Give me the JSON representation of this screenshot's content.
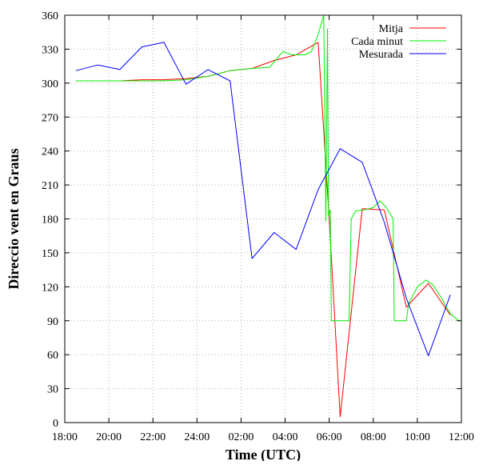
{
  "chart_data": {
    "type": "line",
    "title": "",
    "xlabel": "Time (UTC)",
    "ylabel": "Direccio vent en Graus",
    "x_unit": "hours",
    "xlim": [
      18,
      36
    ],
    "ylim": [
      0,
      360
    ],
    "grid": true,
    "legend_position": "top-right",
    "x_ticks": [
      {
        "v": 18,
        "label": "18:00"
      },
      {
        "v": 20,
        "label": "20:00"
      },
      {
        "v": 22,
        "label": "22:00"
      },
      {
        "v": 24,
        "label": "24:00"
      },
      {
        "v": 26,
        "label": "02:00"
      },
      {
        "v": 28,
        "label": "04:00"
      },
      {
        "v": 30,
        "label": "06:00"
      },
      {
        "v": 32,
        "label": "08:00"
      },
      {
        "v": 34,
        "label": "10:00"
      },
      {
        "v": 36,
        "label": "12:00"
      }
    ],
    "y_ticks": [
      {
        "v": 0,
        "label": "0"
      },
      {
        "v": 30,
        "label": "30"
      },
      {
        "v": 60,
        "label": "60"
      },
      {
        "v": 90,
        "label": "90"
      },
      {
        "v": 120,
        "label": "120"
      },
      {
        "v": 150,
        "label": "150"
      },
      {
        "v": 180,
        "label": "180"
      },
      {
        "v": 210,
        "label": "210"
      },
      {
        "v": 240,
        "label": "240"
      },
      {
        "v": 270,
        "label": "270"
      },
      {
        "v": 300,
        "label": "300"
      },
      {
        "v": 330,
        "label": "330"
      },
      {
        "v": 360,
        "label": "360"
      }
    ],
    "series": [
      {
        "name": "Mitja",
        "color": "#ff0000",
        "points": [
          [
            18.5,
            302
          ],
          [
            19.5,
            302
          ],
          [
            20.5,
            302
          ],
          [
            21.5,
            303
          ],
          [
            22.5,
            303
          ],
          [
            23.5,
            304
          ],
          [
            24.5,
            306
          ],
          [
            25.5,
            311
          ],
          [
            26.5,
            313
          ],
          [
            27.5,
            320
          ],
          [
            28.5,
            325
          ],
          [
            29.5,
            336
          ],
          [
            30.0,
            180
          ],
          [
            30.5,
            5
          ],
          [
            31.5,
            189
          ],
          [
            32.5,
            188
          ],
          [
            33.5,
            102
          ],
          [
            34.5,
            123
          ],
          [
            35.5,
            95
          ]
        ]
      },
      {
        "name": "Cada minut",
        "color": "#00ee00",
        "points": [
          [
            18.5,
            302
          ],
          [
            19.5,
            302
          ],
          [
            20.5,
            302
          ],
          [
            21.5,
            302
          ],
          [
            22.5,
            302
          ],
          [
            23.5,
            303
          ],
          [
            24.5,
            306
          ],
          [
            25.5,
            311
          ],
          [
            26.5,
            313
          ],
          [
            27.3,
            314
          ],
          [
            27.9,
            328
          ],
          [
            28.3,
            325
          ],
          [
            28.9,
            325
          ],
          [
            29.2,
            328
          ],
          [
            29.5,
            343
          ],
          [
            29.75,
            360
          ],
          [
            29.85,
            178
          ],
          [
            29.92,
            348
          ],
          [
            29.97,
            183
          ],
          [
            30.05,
            188
          ],
          [
            30.1,
            90
          ],
          [
            30.3,
            90
          ],
          [
            30.6,
            90
          ],
          [
            30.9,
            90
          ],
          [
            31.0,
            180
          ],
          [
            31.2,
            187
          ],
          [
            31.6,
            188
          ],
          [
            32.0,
            190
          ],
          [
            32.3,
            196
          ],
          [
            32.6,
            190
          ],
          [
            32.9,
            180
          ],
          [
            32.95,
            90
          ],
          [
            33.2,
            90
          ],
          [
            33.5,
            90
          ],
          [
            33.6,
            105
          ],
          [
            34.0,
            120
          ],
          [
            34.4,
            126
          ],
          [
            34.7,
            122
          ],
          [
            35.1,
            110
          ],
          [
            35.5,
            96
          ],
          [
            35.9,
            90
          ],
          [
            36.0,
            90
          ]
        ]
      },
      {
        "name": "Mesurada",
        "color": "#0000ff",
        "points": [
          [
            18.5,
            311
          ],
          [
            19.5,
            316
          ],
          [
            20.5,
            312
          ],
          [
            21.5,
            332
          ],
          [
            22.5,
            336
          ],
          [
            23.5,
            299
          ],
          [
            24.5,
            312
          ],
          [
            25.5,
            302
          ],
          [
            26.5,
            145
          ],
          [
            27.5,
            168
          ],
          [
            28.5,
            153
          ],
          [
            29.5,
            206
          ],
          [
            30.5,
            242
          ],
          [
            31.5,
            230
          ],
          [
            32.5,
            177
          ],
          [
            33.5,
            110
          ],
          [
            34.5,
            59
          ],
          [
            35.5,
            113
          ]
        ]
      }
    ]
  }
}
